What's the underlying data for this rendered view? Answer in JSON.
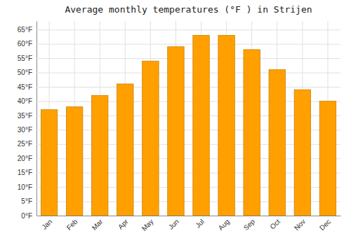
{
  "chart_data": {
    "type": "bar",
    "title": "Average monthly temperatures (°F ) in Strijen",
    "categories": [
      "Jan",
      "Feb",
      "Mar",
      "Apr",
      "May",
      "Jun",
      "Jul",
      "Aug",
      "Sep",
      "Oct",
      "Nov",
      "Dec"
    ],
    "values": [
      37,
      38,
      42,
      46,
      54,
      59,
      63,
      63,
      58,
      51,
      44,
      40
    ],
    "color": "#FFA000",
    "ylim": [
      0,
      68
    ],
    "yticks": [
      {
        "value": 0,
        "label": "0°F"
      },
      {
        "value": 5,
        "label": "5°F"
      },
      {
        "value": 10,
        "label": "10°F"
      },
      {
        "value": 15,
        "label": "15°F"
      },
      {
        "value": 20,
        "label": "20°F"
      },
      {
        "value": 25,
        "label": "25°F"
      },
      {
        "value": 30,
        "label": "30°F"
      },
      {
        "value": 35,
        "label": "35°F"
      },
      {
        "value": 40,
        "label": "40°F"
      },
      {
        "value": 45,
        "label": "45°F"
      },
      {
        "value": 50,
        "label": "50°F"
      },
      {
        "value": 55,
        "label": "55°F"
      },
      {
        "value": 60,
        "label": "60°F"
      },
      {
        "value": 65,
        "label": "65°F"
      }
    ],
    "grid": true
  }
}
